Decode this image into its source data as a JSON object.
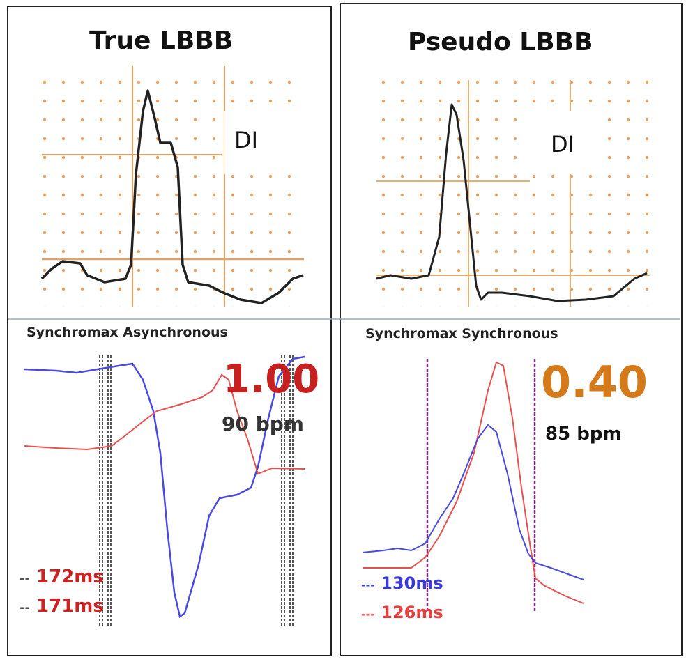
{
  "left_panel": {
    "title": "True LBBB",
    "lead_label": "DI",
    "subtitle": "Synchromax Asynchronous",
    "score": "1.00",
    "heart_rate": "90 bpm",
    "legend": [
      {
        "marker": "--",
        "text": "172ms"
      },
      {
        "marker": "--",
        "text": "171ms"
      }
    ]
  },
  "right_panel": {
    "title": "Pseudo LBBB",
    "lead_label": "DI",
    "subtitle": "Synchromax Synchronous",
    "score": "0.40",
    "heart_rate": "85 bpm",
    "legend": [
      {
        "marker": "---",
        "text": "130ms"
      },
      {
        "marker": "---",
        "text": "126ms"
      }
    ]
  },
  "colors": {
    "ecg_grid": "#e8a060",
    "ecg_trace": "#222222",
    "blue_curve": "#4a4ae0",
    "red_curve": "#e85050",
    "score_async": "#c8201e",
    "score_sync": "#d47a1a",
    "marker_sync": "#8a2a8a"
  }
}
